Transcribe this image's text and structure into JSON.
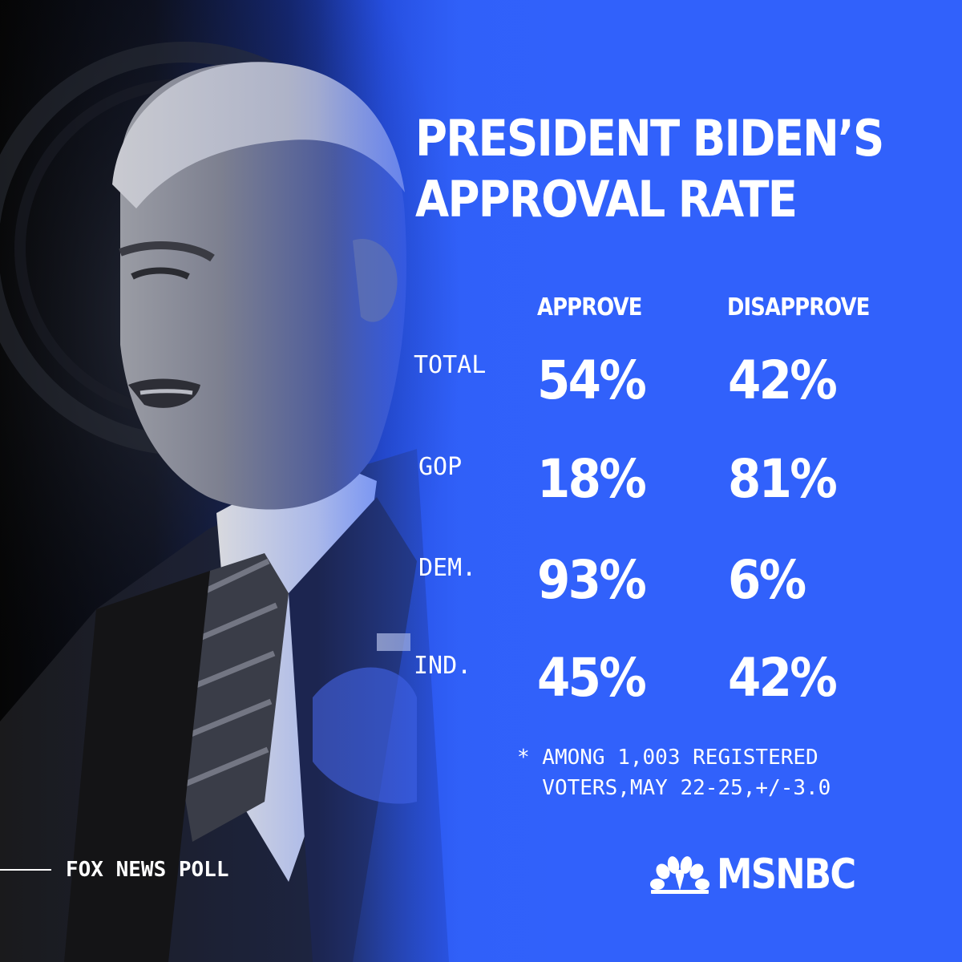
{
  "title_line1": "PRESIDENT BIDEN’S",
  "title_line2": "APPROVAL RATE",
  "chart_data": {
    "type": "table",
    "columns": [
      "APPROVE",
      "DISAPPROVE"
    ],
    "rows": [
      {
        "label": "TOTAL",
        "approve": "54%",
        "disapprove": "42%"
      },
      {
        "label": "GOP",
        "approve": "18%",
        "disapprove": "81%"
      },
      {
        "label": "DEM.",
        "approve": "93%",
        "disapprove": "6%"
      },
      {
        "label": "IND.",
        "approve": "45%",
        "disapprove": "42%"
      }
    ]
  },
  "footnote": "* AMONG 1,003 REGISTERED\n  VOTERS,MAY 22-25,+/-3.0",
  "source": "FOX NEWS POLL",
  "logo_text": "MSNBC",
  "colors": {
    "background_blue": "#3161fb",
    "text": "#ffffff"
  },
  "icons": {
    "logo": "nbc-peacock-icon"
  }
}
